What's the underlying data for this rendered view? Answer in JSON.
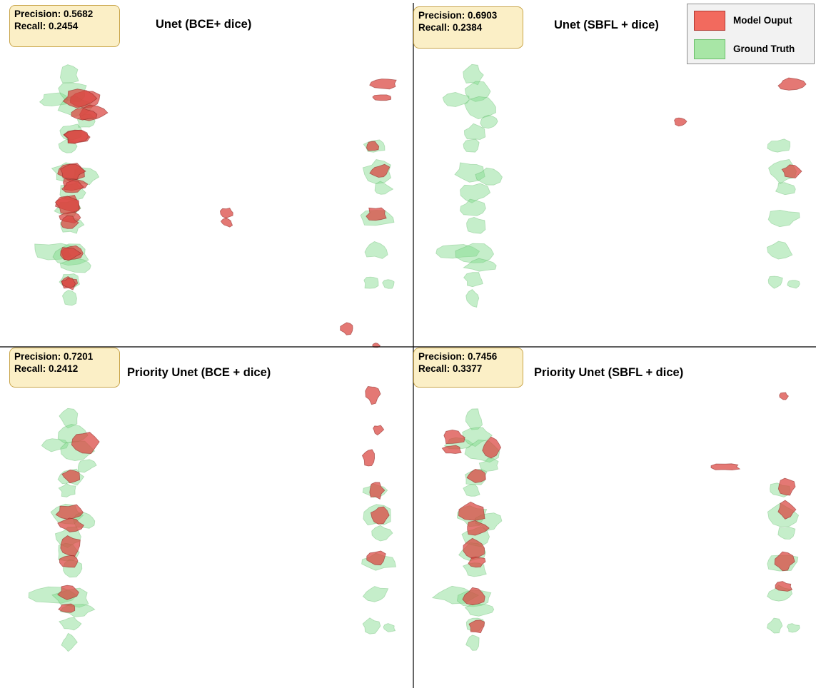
{
  "colors": {
    "model_output": "#d9443f",
    "ground_truth": "#7fd98a",
    "model_output_legend": "#f26a5e",
    "ground_truth_legend": "#a8e6a6",
    "metric_box_fill": "#fbefc6",
    "metric_box_border": "#c9a54a",
    "divider": "#000000"
  },
  "legend": {
    "model_output_label": "Model Ouput",
    "ground_truth_label": "Ground Truth"
  },
  "panels": [
    {
      "title": "Unet (BCE+ dice)",
      "precision": "Precision: 0.5682",
      "recall": "Recall: 0.2454"
    },
    {
      "title": "Unet (SBFL + dice)",
      "precision": "Precision: 0.6903",
      "recall": "Recall: 0.2384"
    },
    {
      "title": "Priority Unet (BCE + dice)",
      "precision": "Precision: 0.7201",
      "recall": "Recall: 0.2412"
    },
    {
      "title": "Priority Unet (SBFL + dice)",
      "precision": "Precision: 0.7456",
      "recall": "Recall: 0.3377"
    }
  ]
}
